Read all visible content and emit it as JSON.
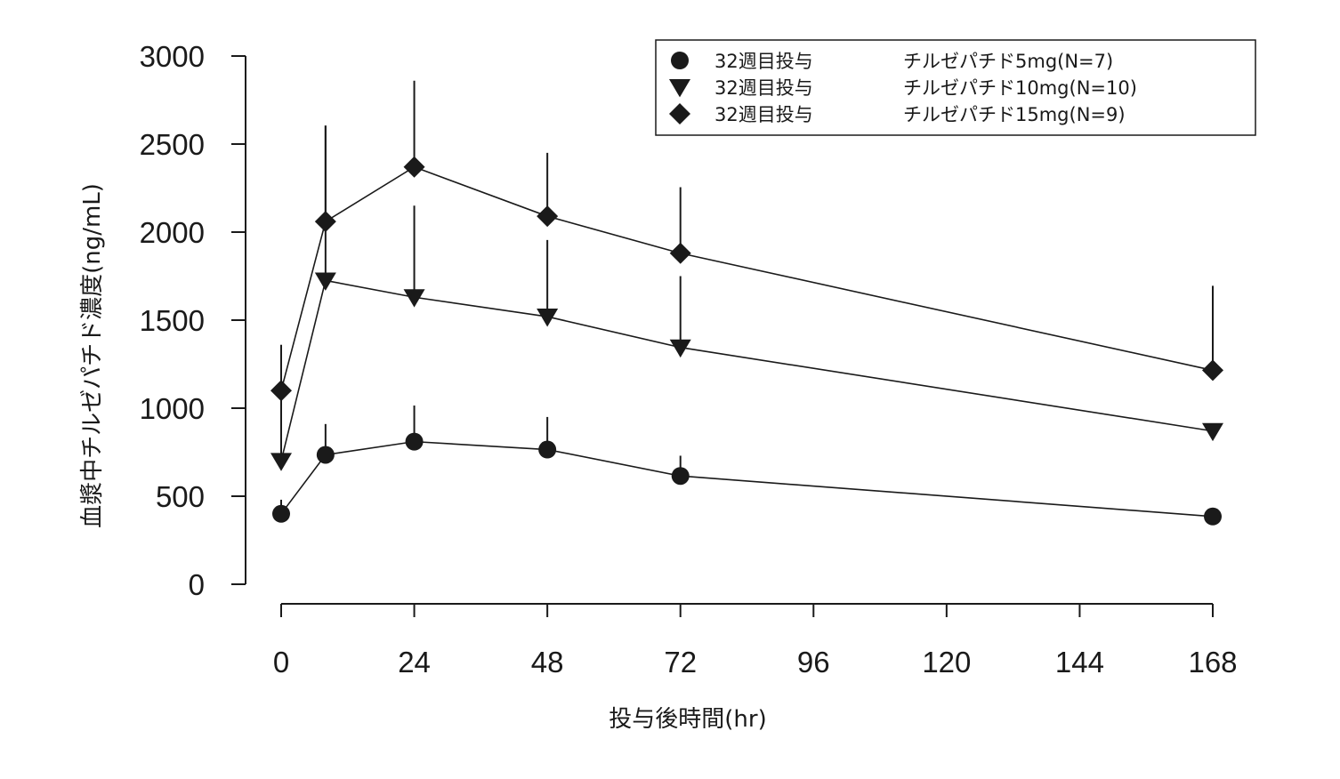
{
  "chart_data": {
    "type": "line",
    "xlabel": "投与後時間(hr)",
    "ylabel": "血漿中チルゼパチド濃度(ng/mL)",
    "xlim": [
      0,
      168
    ],
    "ylim": [
      0,
      3000
    ],
    "xticks": [
      0,
      24,
      48,
      72,
      96,
      120,
      144,
      168
    ],
    "yticks": [
      0,
      500,
      1000,
      1500,
      2000,
      2500,
      3000
    ],
    "x": [
      0,
      8,
      24,
      48,
      72,
      168
    ],
    "grid": false,
    "legend_position": "top-right",
    "series": [
      {
        "name": "32週目投与",
        "dose": "チルゼパチド5mg(N=7)",
        "marker": "circle",
        "values": [
          400,
          735,
          810,
          765,
          615,
          385
        ],
        "sd": [
          80,
          175,
          205,
          185,
          115,
          null
        ]
      },
      {
        "name": "32週目投与",
        "dose": "チルゼパチド10mg(N=10)",
        "marker": "triangle-down",
        "values": [
          700,
          1725,
          1630,
          1520,
          1345,
          870
        ],
        "sd": [
          390,
          880,
          520,
          435,
          405,
          null
        ]
      },
      {
        "name": "32週目投与",
        "dose": "チルゼパチド15mg(N=9)",
        "marker": "diamond",
        "values": [
          1100,
          2060,
          2370,
          2090,
          1880,
          1215
        ],
        "sd": [
          260,
          545,
          490,
          360,
          375,
          480
        ]
      }
    ]
  }
}
